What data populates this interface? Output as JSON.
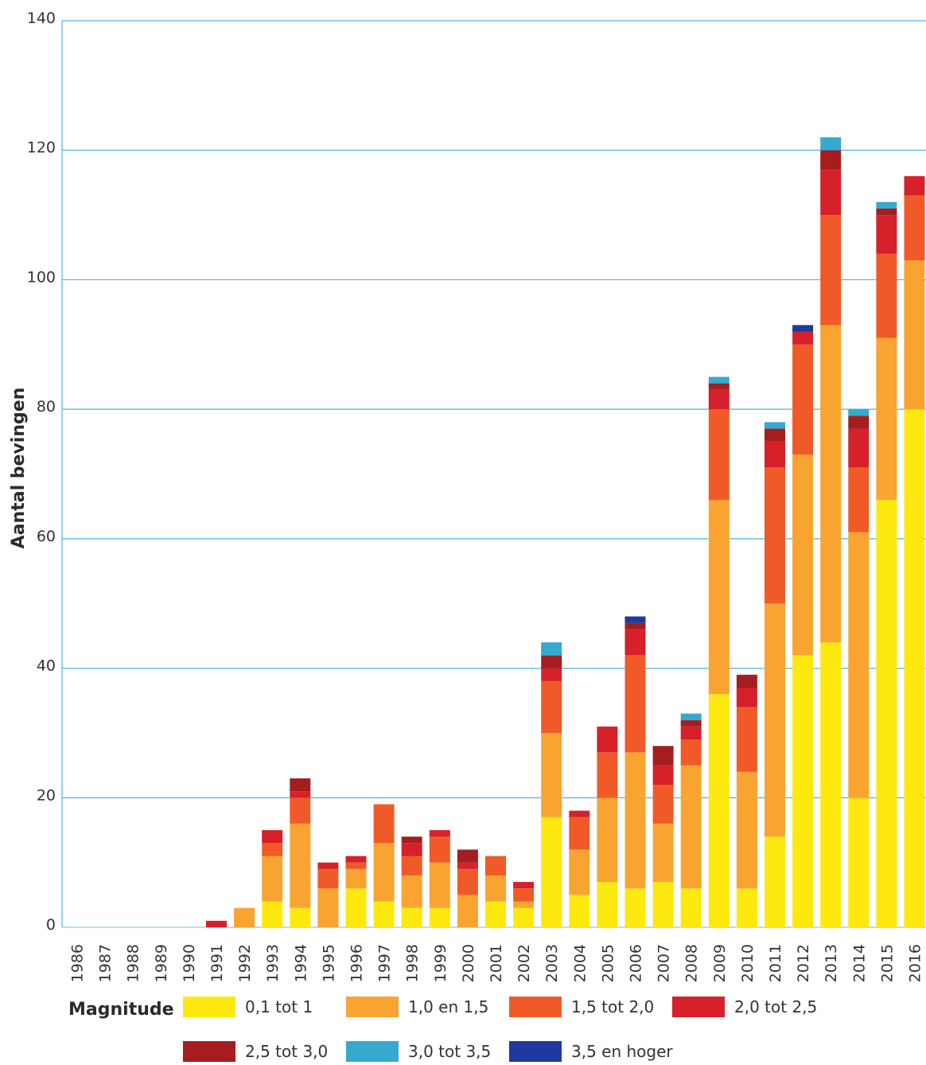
{
  "chart_data": {
    "type": "bar",
    "stacked": true,
    "ylabel": "Aantal bevingen",
    "ylim": [
      0,
      140
    ],
    "yticks": [
      0,
      20,
      40,
      60,
      80,
      100,
      120,
      140
    ],
    "grid": true,
    "legend_title": "Magnitude",
    "legend_position": "bottom",
    "categories": [
      "1986",
      "1987",
      "1988",
      "1989",
      "1990",
      "1991",
      "1992",
      "1993",
      "1994",
      "1995",
      "1996",
      "1997",
      "1998",
      "1999",
      "2000",
      "2001",
      "2002",
      "2003",
      "2004",
      "2005",
      "2006",
      "2007",
      "2008",
      "2009",
      "2010",
      "2011",
      "2012",
      "2013",
      "2014",
      "2015",
      "2016"
    ],
    "series": [
      {
        "name": "0,1 tot 1",
        "color": "#fde910",
        "values": [
          0,
          0,
          0,
          0,
          0,
          0,
          0,
          4,
          3,
          0,
          6,
          4,
          3,
          3,
          0,
          4,
          3,
          17,
          5,
          7,
          6,
          7,
          6,
          36,
          6,
          14,
          42,
          44,
          20,
          66,
          80
        ]
      },
      {
        "name": "1,0 en 1,5",
        "color": "#f9a431",
        "values": [
          0,
          0,
          0,
          0,
          0,
          0,
          3,
          7,
          13,
          6,
          3,
          9,
          5,
          7,
          5,
          4,
          1,
          13,
          7,
          13,
          21,
          9,
          19,
          30,
          18,
          36,
          31,
          49,
          41,
          25,
          23
        ]
      },
      {
        "name": "1,5 tot 2,0",
        "color": "#f05a28",
        "values": [
          0,
          0,
          0,
          0,
          0,
          0,
          0,
          2,
          4,
          3,
          1,
          6,
          3,
          4,
          4,
          3,
          2,
          8,
          5,
          7,
          15,
          6,
          4,
          14,
          10,
          21,
          17,
          17,
          10,
          13,
          10
        ]
      },
      {
        "name": "2,0 tot 2,5",
        "color": "#d6202a",
        "values": [
          0,
          0,
          0,
          0,
          0,
          1,
          0,
          2,
          1,
          1,
          1,
          0,
          2,
          1,
          1,
          0,
          1,
          2,
          1,
          4,
          4,
          3,
          2,
          3,
          3,
          4,
          2,
          7,
          6,
          6,
          3
        ]
      },
      {
        "name": "2,5 tot 3,0",
        "color": "#a51d1e",
        "values": [
          0,
          0,
          0,
          0,
          0,
          0,
          0,
          0,
          2,
          0,
          0,
          0,
          1,
          0,
          2,
          0,
          0,
          2,
          0,
          0,
          1,
          3,
          1,
          1,
          2,
          2,
          0,
          3,
          2,
          1,
          0
        ]
      },
      {
        "name": "3,0 tot 3,5",
        "color": "#36a9cf",
        "values": [
          0,
          0,
          0,
          0,
          0,
          0,
          0,
          0,
          0,
          0,
          0,
          0,
          0,
          0,
          0,
          0,
          0,
          2,
          0,
          0,
          0,
          0,
          1,
          1,
          0,
          1,
          0,
          2,
          1,
          1,
          0
        ]
      },
      {
        "name": "3,5 en hoger",
        "color": "#1e3a9e",
        "values": [
          0,
          0,
          0,
          0,
          0,
          0,
          0,
          0,
          0,
          0,
          0,
          0,
          0,
          0,
          0,
          0,
          0,
          0,
          0,
          0,
          1,
          0,
          0,
          0,
          0,
          0,
          1,
          0,
          0,
          0,
          0
        ]
      }
    ],
    "gridline_color": "#4fb3d9"
  }
}
